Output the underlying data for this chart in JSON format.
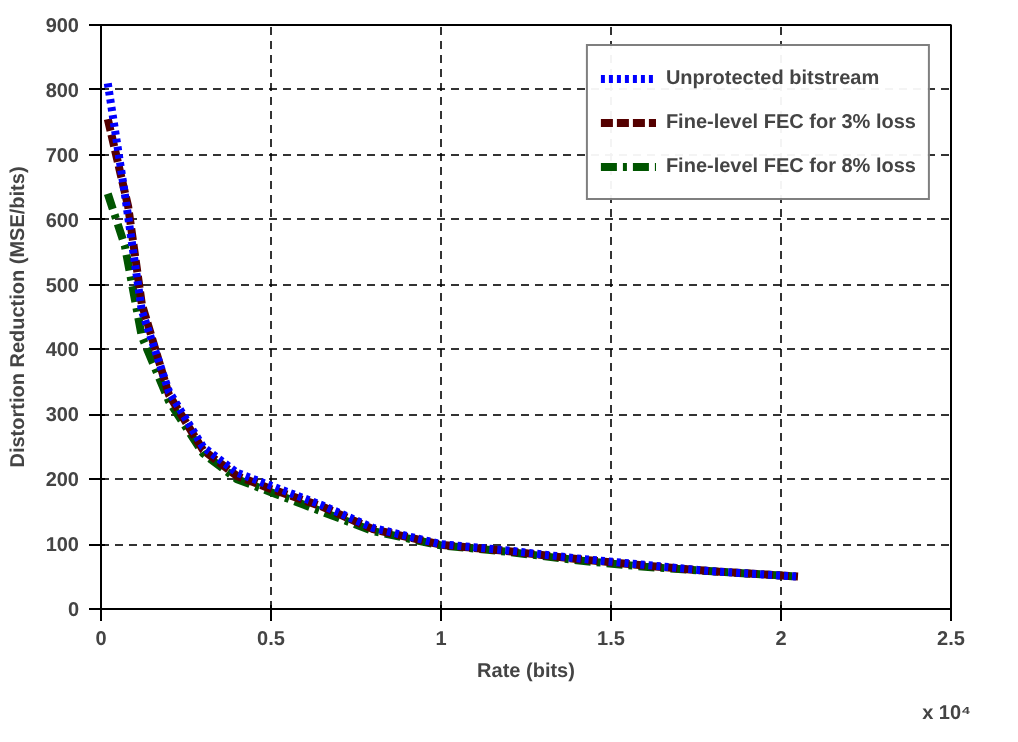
{
  "chart_data": {
    "type": "line",
    "xlabel": "Rate (bits)",
    "ylabel": "Distortion Reduction (MSE/bits)",
    "annotations": [
      "x 10⁴"
    ],
    "xlim": [
      0,
      2.5
    ],
    "ylim": [
      0,
      900
    ],
    "xticks": [
      0,
      0.5,
      1,
      1.5,
      2,
      2.5
    ],
    "yticks": [
      0,
      100,
      200,
      300,
      400,
      500,
      600,
      700,
      800,
      900
    ],
    "grid": true,
    "legend": "top right",
    "series": [
      {
        "name": "Unprotected bitstream",
        "color": "#0000ff",
        "line_style": "dotted",
        "x": [
          0.02,
          0.07,
          0.12,
          0.2,
          0.3,
          0.4,
          0.5,
          0.65,
          0.8,
          1.0,
          1.2,
          1.4,
          1.6,
          1.8,
          2.05
        ],
        "values": [
          810,
          640,
          460,
          335,
          250,
          210,
          190,
          160,
          125,
          100,
          90,
          78,
          68,
          58,
          50
        ]
      },
      {
        "name": "Fine-level FEC for 3% loss",
        "color": "#550000",
        "line_style": "dashed",
        "x": [
          0.02,
          0.08,
          0.12,
          0.2,
          0.3,
          0.4,
          0.5,
          0.65,
          0.8,
          1.0,
          1.2,
          1.4,
          1.6,
          1.8,
          2.05
        ],
        "values": [
          755,
          620,
          470,
          330,
          245,
          205,
          185,
          158,
          123,
          99,
          89,
          77,
          67,
          58,
          50
        ]
      },
      {
        "name": "Fine-level FEC for 8% loss",
        "color": "#005500",
        "line_style": "dashdot",
        "x": [
          0.02,
          0.07,
          0.12,
          0.2,
          0.3,
          0.4,
          0.5,
          0.65,
          0.8,
          1.0,
          1.2,
          1.4,
          1.6,
          1.8,
          2.05
        ],
        "values": [
          640,
          560,
          420,
          320,
          240,
          200,
          180,
          150,
          120,
          98,
          88,
          75,
          65,
          58,
          50
        ]
      }
    ]
  }
}
